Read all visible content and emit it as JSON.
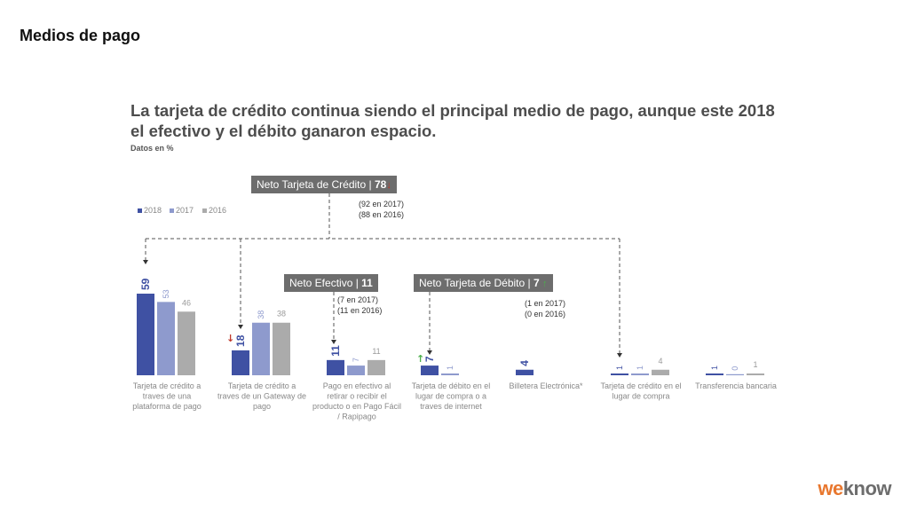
{
  "page_title": "Medios de pago",
  "headline": "La tarjeta de crédito continua siendo el principal medio de pago, aunque este 2018 el efectivo  y el débito ganaron espacio.",
  "units": "Datos en %",
  "legend": [
    {
      "label": "2018",
      "color": "#3f51a3"
    },
    {
      "label": "2017",
      "color": "#8e9acd"
    },
    {
      "label": "2016",
      "color": "#ababab"
    }
  ],
  "net_boxes": {
    "credito": {
      "label": "Neto Tarjeta de Crédito | ",
      "value": "78",
      "arrow": "↓",
      "prev": [
        "(92 en 2017)",
        "(88 en 2016)"
      ]
    },
    "efectivo": {
      "label": "Neto Efectivo | ",
      "value": "11",
      "prev": [
        "(7 en 2017)",
        "(11 en 2016)"
      ]
    },
    "debito": {
      "label": "Neto Tarjeta de Débito | ",
      "value": "7",
      "arrow": "↑",
      "prev": [
        "(1 en 2017)",
        "(0 en 2016)"
      ]
    }
  },
  "logo": {
    "prefix": "we",
    "suffix": "know"
  },
  "chart_data": {
    "type": "bar",
    "title": "La tarjeta de crédito continua siendo el principal medio de pago, aunque este 2018 el efectivo  y el débito ganaron espacio.",
    "ylabel": "Datos en %",
    "categories": [
      "Tarjeta de crédito a traves de una plataforma de pago",
      "Tarjeta de crédito a traves de un Gateway de pago",
      "Pago en efectivo al retirar o recibir el producto o en Pago Fácil / Rapipago",
      "Tarjeta de débito en el lugar de compra o a traves de internet",
      "Billetera Electrónica*",
      "Tarjeta de crédito en el lugar de compra",
      "Transferencia bancaria"
    ],
    "category_lines": [
      [
        "Tarjeta de crédito a",
        "traves de una",
        "plataforma de pago"
      ],
      [
        "Tarjeta de crédito a",
        "traves de un Gateway de",
        "pago"
      ],
      [
        "Pago en efectivo al",
        "retirar o recibir el",
        "producto o en Pago Fácil",
        "/ Rapipago"
      ],
      [
        "Tarjeta de débito en el",
        "lugar de compra o a",
        "traves de internet"
      ],
      [
        "Billetera Electrónica*"
      ],
      [
        "Tarjeta de crédito en el",
        "lugar de compra"
      ],
      [
        "Transferencia bancaria"
      ]
    ],
    "series": [
      {
        "name": "2018",
        "color": "#3f51a3",
        "values": [
          59,
          18,
          11,
          7,
          4,
          1,
          1
        ]
      },
      {
        "name": "2017",
        "color": "#8e9acd",
        "values": [
          53,
          38,
          7,
          1,
          null,
          1,
          0
        ]
      },
      {
        "name": "2016",
        "color": "#ababab",
        "values": [
          46,
          38,
          11,
          null,
          null,
          4,
          1
        ]
      }
    ],
    "trend_arrows": {
      "1": "down",
      "3": "up"
    },
    "ylim": [
      0,
      60
    ],
    "grid": false,
    "legend_position": "top-left"
  }
}
